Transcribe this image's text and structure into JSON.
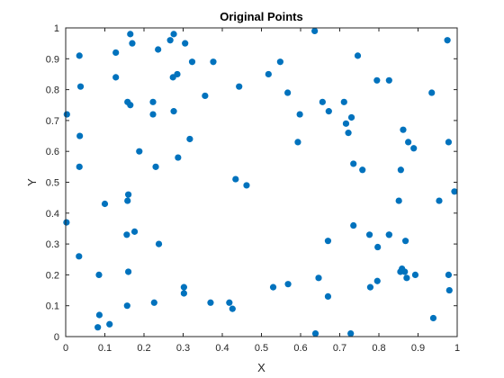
{
  "chart_data": {
    "type": "scatter",
    "title": "Original Points",
    "xlabel": "X",
    "ylabel": "Y",
    "xlim": [
      0,
      1
    ],
    "ylim": [
      0,
      1
    ],
    "xticks": [
      "0",
      "0.1",
      "0.2",
      "0.3",
      "0.4",
      "0.5",
      "0.6",
      "0.7",
      "0.8",
      "0.9",
      "1"
    ],
    "yticks": [
      "0",
      "0.1",
      "0.2",
      "0.3",
      "0.4",
      "0.5",
      "0.6",
      "0.7",
      "0.8",
      "0.9",
      "1"
    ],
    "grid": false,
    "marker_color": "#0072BD",
    "axis_color": "#262626",
    "points": [
      [
        0.035,
        0.91
      ],
      [
        0.038,
        0.81
      ],
      [
        0.003,
        0.72
      ],
      [
        0.036,
        0.65
      ],
      [
        0.035,
        0.55
      ],
      [
        0.002,
        0.37
      ],
      [
        0.034,
        0.26
      ],
      [
        0.085,
        0.2
      ],
      [
        0.082,
        0.03
      ],
      [
        0.086,
        0.07
      ],
      [
        0.112,
        0.04
      ],
      [
        0.1,
        0.43
      ],
      [
        0.128,
        0.92
      ],
      [
        0.128,
        0.84
      ],
      [
        0.158,
        0.76
      ],
      [
        0.165,
        0.75
      ],
      [
        0.165,
        0.98
      ],
      [
        0.17,
        0.95
      ],
      [
        0.188,
        0.6
      ],
      [
        0.156,
        0.33
      ],
      [
        0.176,
        0.34
      ],
      [
        0.16,
        0.46
      ],
      [
        0.158,
        0.44
      ],
      [
        0.16,
        0.21
      ],
      [
        0.157,
        0.1
      ],
      [
        0.223,
        0.76
      ],
      [
        0.223,
        0.72
      ],
      [
        0.23,
        0.55
      ],
      [
        0.238,
        0.3
      ],
      [
        0.236,
        0.93
      ],
      [
        0.267,
        0.96
      ],
      [
        0.276,
        0.98
      ],
      [
        0.274,
        0.84
      ],
      [
        0.285,
        0.85
      ],
      [
        0.276,
        0.73
      ],
      [
        0.287,
        0.58
      ],
      [
        0.305,
        0.95
      ],
      [
        0.317,
        0.64
      ],
      [
        0.323,
        0.89
      ],
      [
        0.302,
        0.16
      ],
      [
        0.302,
        0.14
      ],
      [
        0.226,
        0.11
      ],
      [
        0.356,
        0.78
      ],
      [
        0.377,
        0.89
      ],
      [
        0.37,
        0.11
      ],
      [
        0.418,
        0.11
      ],
      [
        0.426,
        0.09
      ],
      [
        0.434,
        0.51
      ],
      [
        0.443,
        0.81
      ],
      [
        0.462,
        0.49
      ],
      [
        0.518,
        0.85
      ],
      [
        0.548,
        0.89
      ],
      [
        0.567,
        0.79
      ],
      [
        0.53,
        0.16
      ],
      [
        0.568,
        0.17
      ],
      [
        0.593,
        0.63
      ],
      [
        0.598,
        0.72
      ],
      [
        0.636,
        0.99
      ],
      [
        0.656,
        0.76
      ],
      [
        0.672,
        0.73
      ],
      [
        0.646,
        0.19
      ],
      [
        0.67,
        0.31
      ],
      [
        0.67,
        0.13
      ],
      [
        0.638,
        0.01
      ],
      [
        0.711,
        0.76
      ],
      [
        0.716,
        0.69
      ],
      [
        0.722,
        0.66
      ],
      [
        0.73,
        0.71
      ],
      [
        0.746,
        0.91
      ],
      [
        0.735,
        0.56
      ],
      [
        0.758,
        0.54
      ],
      [
        0.735,
        0.36
      ],
      [
        0.776,
        0.33
      ],
      [
        0.797,
        0.29
      ],
      [
        0.795,
        0.83
      ],
      [
        0.826,
        0.83
      ],
      [
        0.778,
        0.16
      ],
      [
        0.796,
        0.18
      ],
      [
        0.728,
        0.01
      ],
      [
        0.826,
        0.33
      ],
      [
        0.826,
        0.33
      ],
      [
        0.855,
        0.21
      ],
      [
        0.859,
        0.22
      ],
      [
        0.866,
        0.21
      ],
      [
        0.871,
        0.19
      ],
      [
        0.893,
        0.2
      ],
      [
        0.868,
        0.31
      ],
      [
        0.851,
        0.44
      ],
      [
        0.856,
        0.54
      ],
      [
        0.862,
        0.67
      ],
      [
        0.875,
        0.63
      ],
      [
        0.889,
        0.61
      ],
      [
        0.935,
        0.79
      ],
      [
        0.975,
        0.96
      ],
      [
        0.978,
        0.63
      ],
      [
        0.954,
        0.44
      ],
      [
        0.993,
        0.47
      ],
      [
        0.978,
        0.2
      ],
      [
        0.98,
        0.15
      ],
      [
        0.939,
        0.06
      ]
    ]
  }
}
